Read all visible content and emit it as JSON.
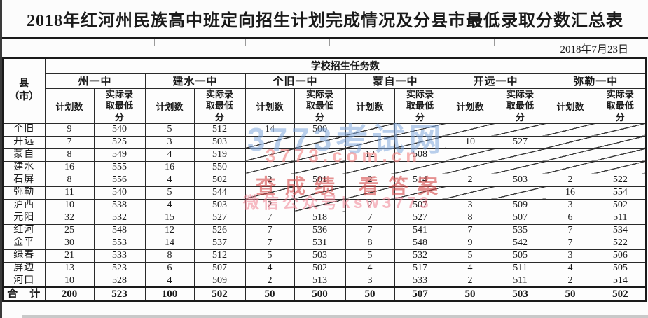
{
  "title": "2018年红河州民族高中班定向招生计划完成情况及分县市最低录取分数汇总表",
  "date": "2018年7月23日",
  "watermarks": {
    "site": "3773考试网",
    "url": "3773.com.cn",
    "slogan": "查成绩 看答案",
    "wechat": "微信公众号ksw3773"
  },
  "table": {
    "corner_label": "县\n（市）",
    "group_header": "学校招生任务数",
    "plan_label": "计划数",
    "score_label": "实际录\n取最低\n分",
    "schools": [
      "州一中",
      "建水一中",
      "个旧一中",
      "蒙自一中",
      "开远一中",
      "弥勒一中"
    ],
    "rows": [
      {
        "county": "个旧",
        "cells": [
          9,
          540,
          5,
          512,
          14,
          500,
          null,
          null,
          null,
          null,
          null,
          null
        ]
      },
      {
        "county": "开远",
        "cells": [
          7,
          525,
          3,
          503,
          null,
          null,
          null,
          null,
          10,
          527,
          null,
          null
        ]
      },
      {
        "county": "蒙自",
        "cells": [
          8,
          549,
          4,
          519,
          null,
          null,
          12,
          508,
          null,
          null,
          null,
          null
        ]
      },
      {
        "county": "建水",
        "cells": [
          16,
          555,
          16,
          550,
          null,
          null,
          null,
          null,
          null,
          null,
          null,
          null
        ]
      },
      {
        "county": "石屏",
        "cells": [
          8,
          556,
          4,
          502,
          2,
          501,
          2,
          514,
          2,
          503,
          2,
          522
        ]
      },
      {
        "county": "弥勒",
        "cells": [
          11,
          540,
          5,
          544,
          null,
          null,
          null,
          null,
          null,
          null,
          16,
          554
        ]
      },
      {
        "county": "泸西",
        "cells": [
          10,
          538,
          4,
          503,
          2,
          null,
          2,
          507,
          3,
          509,
          3,
          502
        ]
      },
      {
        "county": "元阳",
        "cells": [
          32,
          532,
          15,
          527,
          7,
          518,
          7,
          527,
          8,
          507,
          6,
          511
        ]
      },
      {
        "county": "红河",
        "cells": [
          25,
          548,
          12,
          526,
          7,
          536,
          7,
          541,
          7,
          535,
          7,
          534
        ]
      },
      {
        "county": "金平",
        "cells": [
          30,
          553,
          14,
          537,
          7,
          531,
          8,
          548,
          9,
          542,
          7,
          522
        ]
      },
      {
        "county": "绿春",
        "cells": [
          21,
          533,
          8,
          512,
          5,
          503,
          5,
          532,
          5,
          505,
          3,
          506
        ]
      },
      {
        "county": "屏边",
        "cells": [
          13,
          523,
          6,
          507,
          4,
          502,
          4,
          517,
          4,
          511,
          4,
          505
        ]
      },
      {
        "county": "河口",
        "cells": [
          10,
          528,
          4,
          509,
          2,
          513,
          3,
          533,
          2,
          511,
          2,
          514
        ]
      }
    ],
    "total": {
      "county": "合　计",
      "cells": [
        200,
        523,
        100,
        502,
        50,
        500,
        50,
        507,
        50,
        503,
        50,
        502
      ]
    }
  },
  "colors": {
    "border": "#2a2a2a",
    "watermark_blue": "#80a8dc",
    "watermark_pink": "#f38080",
    "watermark_red": "#d64848"
  }
}
